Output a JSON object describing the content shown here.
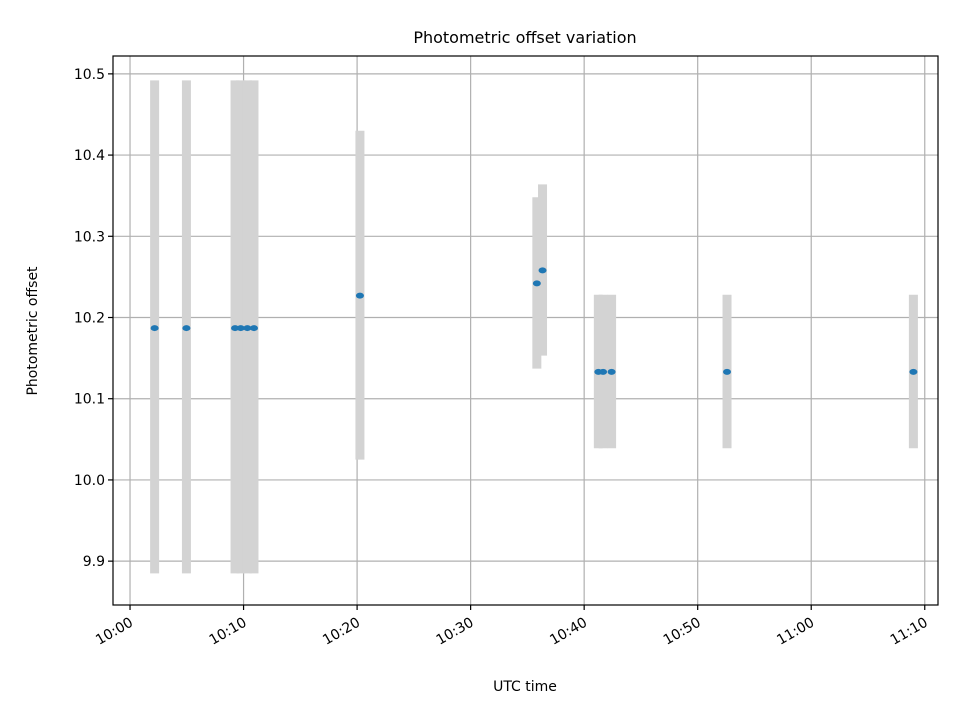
{
  "chart_data": {
    "type": "scatter",
    "title": "Photometric offset variation",
    "xlabel": "UTC time",
    "ylabel": "Photometric offset",
    "x_ticks": [
      "10:00",
      "10:10",
      "10:20",
      "10:30",
      "10:40",
      "10:50",
      "11:00",
      "11:10"
    ],
    "y_ticks": [
      "9.9",
      "10.0",
      "10.1",
      "10.2",
      "10.3",
      "10.4",
      "10.5"
    ],
    "xlim": [
      "09:58:30",
      "11:11:10"
    ],
    "ylim": [
      9.846,
      10.522
    ],
    "grid": true,
    "colors": {
      "point": "#1f77b4",
      "errorbar": "#d3d3d3"
    },
    "points": [
      {
        "x": "10:02:10",
        "y": 10.187,
        "yerr_low": 9.885,
        "yerr_high": 10.492
      },
      {
        "x": "10:04:58",
        "y": 10.187,
        "yerr_low": 9.885,
        "yerr_high": 10.492
      },
      {
        "x": "10:09:15",
        "y": 10.187,
        "yerr_low": 9.885,
        "yerr_high": 10.492
      },
      {
        "x": "10:09:45",
        "y": 10.187,
        "yerr_low": 9.885,
        "yerr_high": 10.492
      },
      {
        "x": "10:10:20",
        "y": 10.187,
        "yerr_low": 9.885,
        "yerr_high": 10.492
      },
      {
        "x": "10:10:55",
        "y": 10.187,
        "yerr_low": 9.885,
        "yerr_high": 10.492
      },
      {
        "x": "10:20:15",
        "y": 10.227,
        "yerr_low": 10.025,
        "yerr_high": 10.43
      },
      {
        "x": "10:35:50",
        "y": 10.242,
        "yerr_low": 10.137,
        "yerr_high": 10.348
      },
      {
        "x": "10:36:20",
        "y": 10.258,
        "yerr_low": 10.153,
        "yerr_high": 10.364
      },
      {
        "x": "10:41:15",
        "y": 10.133,
        "yerr_low": 10.039,
        "yerr_high": 10.228
      },
      {
        "x": "10:41:40",
        "y": 10.133,
        "yerr_low": 10.039,
        "yerr_high": 10.228
      },
      {
        "x": "10:42:25",
        "y": 10.133,
        "yerr_low": 10.039,
        "yerr_high": 10.228
      },
      {
        "x": "10:52:35",
        "y": 10.133,
        "yerr_low": 10.039,
        "yerr_high": 10.228
      },
      {
        "x": "11:09:00",
        "y": 10.133,
        "yerr_low": 10.039,
        "yerr_high": 10.228
      }
    ]
  }
}
